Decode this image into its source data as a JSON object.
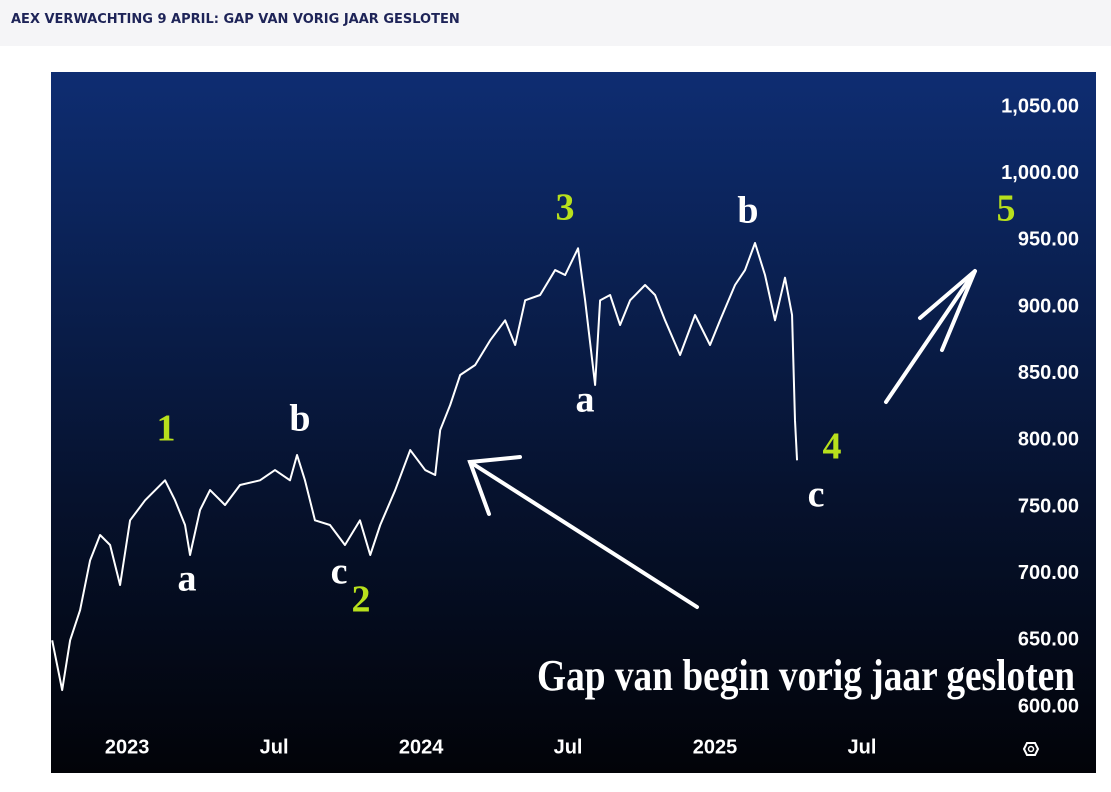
{
  "header": {
    "title": "AEX VERWACHTING 9 APRIL: GAP VAN VORIG JAAR GESLOTEN"
  },
  "chart_data": {
    "type": "line",
    "x": [
      2022.745,
      2022.779,
      2022.806,
      2022.84,
      2022.874,
      2022.908,
      2022.942,
      2022.976,
      2023.01,
      2023.061,
      2023.129,
      2023.163,
      2023.197,
      2023.214,
      2023.248,
      2023.282,
      2023.333,
      2023.384,
      2023.452,
      2023.503,
      2023.554,
      2023.578,
      2023.605,
      2023.639,
      2023.69,
      2023.741,
      2023.792,
      2023.827,
      2023.861,
      2023.912,
      2023.963,
      2024.014,
      2024.048,
      2024.065,
      2024.099,
      2024.133,
      2024.184,
      2024.235,
      2024.286,
      2024.32,
      2024.354,
      2024.405,
      2024.456,
      2024.49,
      2024.534,
      2024.558,
      2024.592,
      2024.609,
      2024.643,
      2024.677,
      2024.711,
      2024.762,
      2024.796,
      2024.83,
      2024.881,
      2024.932,
      2024.983,
      2025.017,
      2025.068,
      2025.102,
      2025.136,
      2025.17,
      2025.204,
      2025.238,
      2025.262,
      2025.272,
      2025.279
    ],
    "series": [
      {
        "color": "#ffffff",
        "values": [
          650,
          612.7,
          650,
          672.7,
          710,
          729,
          721.5,
          691.5,
          740,
          755,
          770,
          755,
          736.5,
          714,
          747.7,
          762.7,
          751.5,
          766.5,
          770,
          777.7,
          770,
          789,
          770,
          740,
          736.5,
          721.5,
          740,
          714,
          736.5,
          762.7,
          792.7,
          777.7,
          774,
          807.7,
          826.5,
          849,
          856.5,
          875,
          890,
          871.5,
          905,
          909,
          927.7,
          924,
          944,
          905,
          841.5,
          905,
          909,
          886.5,
          905,
          916.5,
          909,
          890,
          864,
          894,
          871.5,
          890,
          916.5,
          927.7,
          948,
          924,
          890,
          922,
          894,
          815,
          785
        ]
      }
    ],
    "xlim": [
      2022.741,
      2026.296
    ],
    "xticks": [
      {
        "value": 2023,
        "label": "2023"
      },
      {
        "value": 2023.5,
        "label": "Jul"
      },
      {
        "value": 2024,
        "label": "2024"
      },
      {
        "value": 2024.5,
        "label": "Jul"
      },
      {
        "value": 2025,
        "label": "2025"
      },
      {
        "value": 2025.5,
        "label": "Jul"
      }
    ],
    "ylim": [
      550.5,
      1076.25
    ],
    "yticks": [
      {
        "value": 600,
        "label": "600.00"
      },
      {
        "value": 650,
        "label": "650.00"
      },
      {
        "value": 700,
        "label": "700.00"
      },
      {
        "value": 750,
        "label": "750.00"
      },
      {
        "value": 800,
        "label": "800.00"
      },
      {
        "value": 850,
        "label": "850.00"
      },
      {
        "value": 900,
        "label": "900.00"
      },
      {
        "value": 950,
        "label": "950.00"
      },
      {
        "value": 1000,
        "label": "1,000.00"
      },
      {
        "value": 1050,
        "label": "1,050.00"
      }
    ],
    "annotations": [
      "1",
      "a",
      "b",
      "c",
      "2",
      "3",
      "a",
      "b",
      "4",
      "c",
      "5",
      "Gap van begin vorig jaar gesloten"
    ]
  }
}
